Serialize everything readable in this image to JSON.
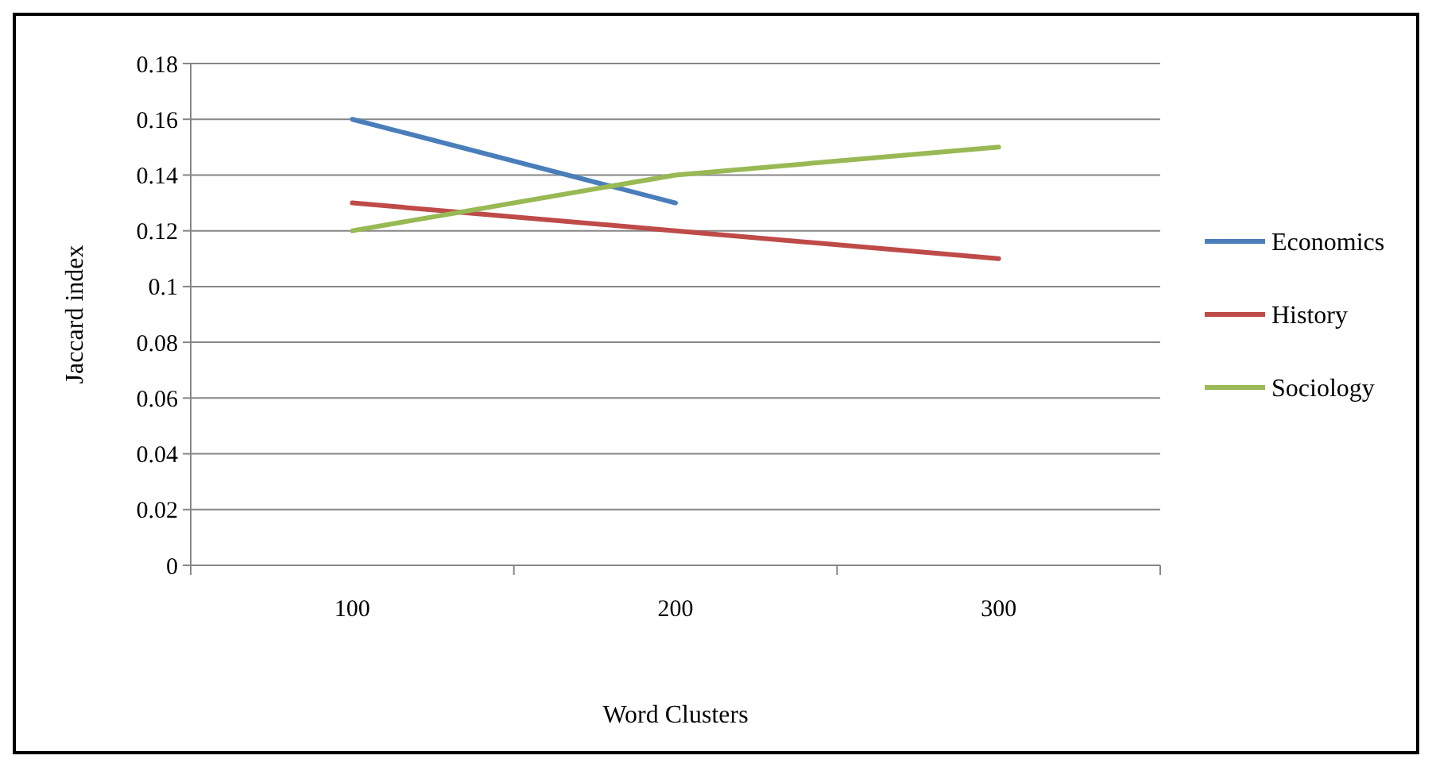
{
  "chart_data": {
    "type": "line",
    "xlabel": "Word Clusters",
    "ylabel": "Jaccard index",
    "categories": [
      "100",
      "200",
      "300"
    ],
    "series": [
      {
        "name": "Economics",
        "color": "#4a7ebb",
        "values": [
          0.16,
          0.13,
          null
        ]
      },
      {
        "name": "History",
        "color": "#be4b48",
        "values": [
          0.13,
          0.12,
          0.11
        ]
      },
      {
        "name": "Sociology",
        "color": "#98b954",
        "values": [
          0.12,
          0.14,
          0.15
        ]
      }
    ],
    "ylim": [
      0,
      0.18
    ],
    "yticks": [
      0,
      0.02,
      0.04,
      0.06,
      0.08,
      0.1,
      0.12,
      0.14,
      0.16,
      0.18
    ],
    "grid": "y",
    "legend": "right",
    "marker": "none",
    "line_style": "solid"
  }
}
